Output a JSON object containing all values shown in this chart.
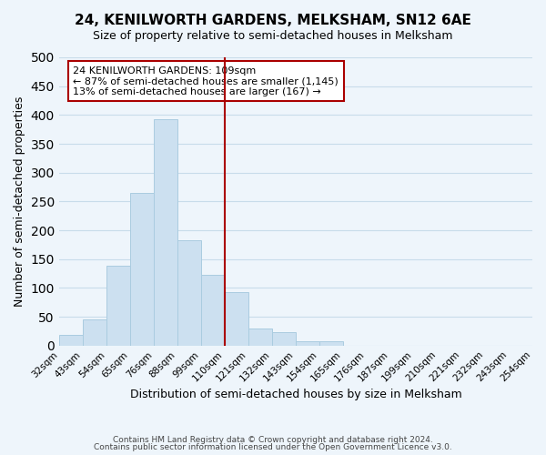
{
  "title": "24, KENILWORTH GARDENS, MELKSHAM, SN12 6AE",
  "subtitle": "Size of property relative to semi-detached houses in Melksham",
  "xlabel": "Distribution of semi-detached houses by size in Melksham",
  "ylabel": "Number of semi-detached properties",
  "footer1": "Contains HM Land Registry data © Crown copyright and database right 2024.",
  "footer2": "Contains public sector information licensed under the Open Government Licence v3.0.",
  "tick_labels": [
    "32sqm",
    "43sqm",
    "54sqm",
    "65sqm",
    "76sqm",
    "88sqm",
    "99sqm",
    "110sqm",
    "121sqm",
    "132sqm",
    "143sqm",
    "154sqm",
    "165sqm",
    "176sqm",
    "187sqm",
    "199sqm",
    "210sqm",
    "221sqm",
    "232sqm",
    "243sqm",
    "254sqm"
  ],
  "values": [
    18,
    46,
    139,
    265,
    392,
    183,
    123,
    92,
    29,
    24,
    7,
    8,
    0,
    0,
    0,
    0,
    0,
    0,
    0,
    0
  ],
  "bar_color": "#cce0f0",
  "bar_edge_color": "#aacce0",
  "vline_position": 7,
  "vline_color": "#aa0000",
  "annotation_title": "24 KENILWORTH GARDENS: 109sqm",
  "annotation_line1": "← 87% of semi-detached houses are smaller (1,145)",
  "annotation_line2": "13% of semi-detached houses are larger (167) →",
  "annotation_box_facecolor": "#ffffff",
  "annotation_box_edgecolor": "#aa0000",
  "ylim": [
    0,
    500
  ],
  "yticks": [
    0,
    50,
    100,
    150,
    200,
    250,
    300,
    350,
    400,
    450,
    500
  ],
  "grid_color": "#c8dcea",
  "bg_color": "#eef5fb"
}
